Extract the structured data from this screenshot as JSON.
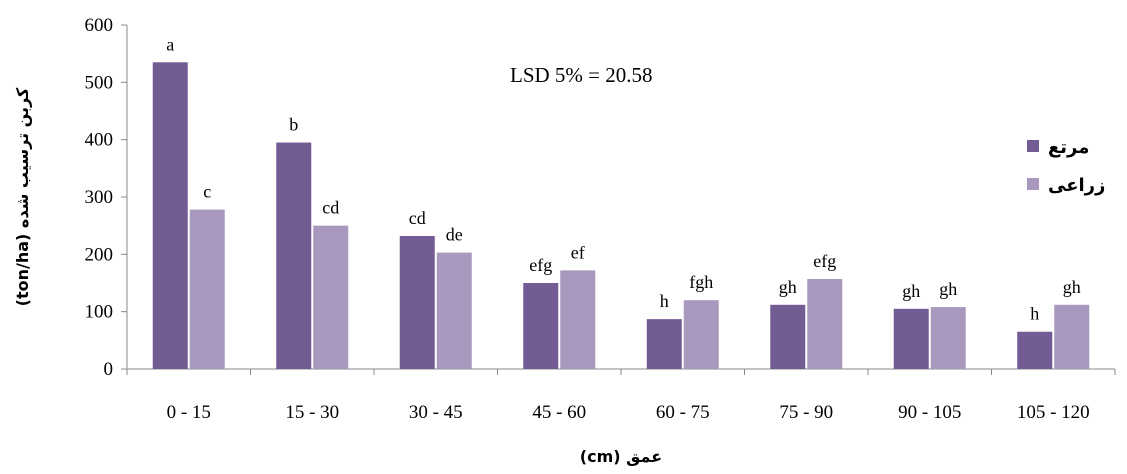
{
  "chart_data": {
    "type": "bar",
    "categories": [
      "0 - 15",
      "15 - 30",
      "30 - 45",
      "45 - 60",
      "60 - 75",
      "75 - 90",
      "90 - 105",
      "105 - 120"
    ],
    "series": [
      {
        "name": "مرتع",
        "color": "#735c93",
        "values": [
          535,
          395,
          232,
          150,
          87,
          112,
          105,
          65
        ],
        "labels": [
          "a",
          "b",
          "cd",
          "efg",
          "h",
          "gh",
          "gh",
          "h"
        ]
      },
      {
        "name": "زراعی",
        "color": "#a898bd",
        "values": [
          278,
          250,
          203,
          172,
          120,
          157,
          108,
          112
        ],
        "labels": [
          "c",
          "cd",
          "de",
          "ef",
          "fgh",
          "efg",
          "gh",
          "gh"
        ]
      }
    ],
    "xlabel": "عمق (cm)",
    "ylabel": "کربن ترسیب شده  (ton/ha)",
    "ylim": [
      0,
      600
    ],
    "yticks": [
      0,
      100,
      200,
      300,
      400,
      500,
      600
    ],
    "annotation": "LSD 5% =  20.58",
    "legend_position": "right",
    "grid": false
  }
}
